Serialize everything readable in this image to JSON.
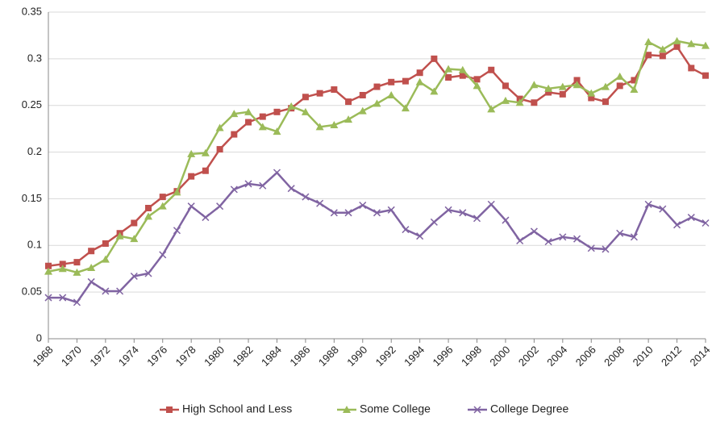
{
  "chart_data": {
    "type": "line",
    "x": [
      1968,
      1969,
      1970,
      1971,
      1972,
      1973,
      1974,
      1975,
      1976,
      1977,
      1978,
      1979,
      1980,
      1981,
      1982,
      1983,
      1984,
      1985,
      1986,
      1987,
      1988,
      1989,
      1990,
      1991,
      1992,
      1993,
      1994,
      1995,
      1996,
      1997,
      1998,
      1999,
      2000,
      2001,
      2002,
      2003,
      2004,
      2005,
      2006,
      2007,
      2008,
      2009,
      2010,
      2011,
      2012,
      2013,
      2014
    ],
    "xlim": [
      1968,
      2014
    ],
    "xticks": [
      1968,
      1970,
      1972,
      1974,
      1976,
      1978,
      1980,
      1982,
      1984,
      1986,
      1988,
      1990,
      1992,
      1994,
      1996,
      1998,
      2000,
      2002,
      2004,
      2006,
      2008,
      2010,
      2012,
      2014
    ],
    "ylim": [
      0,
      0.35
    ],
    "yticks": [
      0,
      0.05,
      0.1,
      0.15,
      0.2,
      0.25,
      0.3,
      0.35
    ],
    "grid": true,
    "legend": "bottom",
    "series": [
      {
        "name": "High School and Less",
        "color": "#c0504d",
        "marker": "square",
        "values": [
          0.078,
          0.08,
          0.082,
          0.094,
          0.102,
          0.113,
          0.124,
          0.14,
          0.152,
          0.158,
          0.174,
          0.18,
          0.203,
          0.219,
          0.232,
          0.238,
          0.243,
          0.247,
          0.259,
          0.263,
          0.267,
          0.254,
          0.261,
          0.27,
          0.275,
          0.276,
          0.285,
          0.3,
          0.28,
          0.282,
          0.278,
          0.288,
          0.271,
          0.257,
          0.253,
          0.264,
          0.262,
          0.277,
          0.258,
          0.254,
          0.271,
          0.277,
          0.304,
          0.303,
          0.313,
          0.29,
          0.282
        ]
      },
      {
        "name": "Some College",
        "color": "#9bbb59",
        "marker": "triangle",
        "values": [
          0.072,
          0.075,
          0.071,
          0.076,
          0.085,
          0.11,
          0.107,
          0.131,
          0.142,
          0.157,
          0.198,
          0.199,
          0.226,
          0.241,
          0.243,
          0.227,
          0.222,
          0.249,
          0.243,
          0.227,
          0.229,
          0.235,
          0.244,
          0.252,
          0.261,
          0.247,
          0.275,
          0.265,
          0.289,
          0.288,
          0.271,
          0.246,
          0.255,
          0.253,
          0.272,
          0.268,
          0.27,
          0.272,
          0.263,
          0.27,
          0.281,
          0.267,
          0.318,
          0.31,
          0.319,
          0.316,
          0.314
        ]
      },
      {
        "name": "College Degree",
        "color": "#8064a2",
        "marker": "x",
        "values": [
          0.044,
          0.044,
          0.039,
          0.061,
          0.051,
          0.051,
          0.067,
          0.07,
          0.09,
          0.116,
          0.142,
          0.13,
          0.142,
          0.16,
          0.166,
          0.164,
          0.178,
          0.161,
          0.152,
          0.145,
          0.135,
          0.135,
          0.143,
          0.135,
          0.138,
          0.117,
          0.11,
          0.125,
          0.138,
          0.135,
          0.129,
          0.144,
          0.127,
          0.105,
          0.115,
          0.104,
          0.109,
          0.107,
          0.097,
          0.096,
          0.113,
          0.109,
          0.144,
          0.139,
          0.122,
          0.13,
          0.124
        ]
      }
    ]
  }
}
